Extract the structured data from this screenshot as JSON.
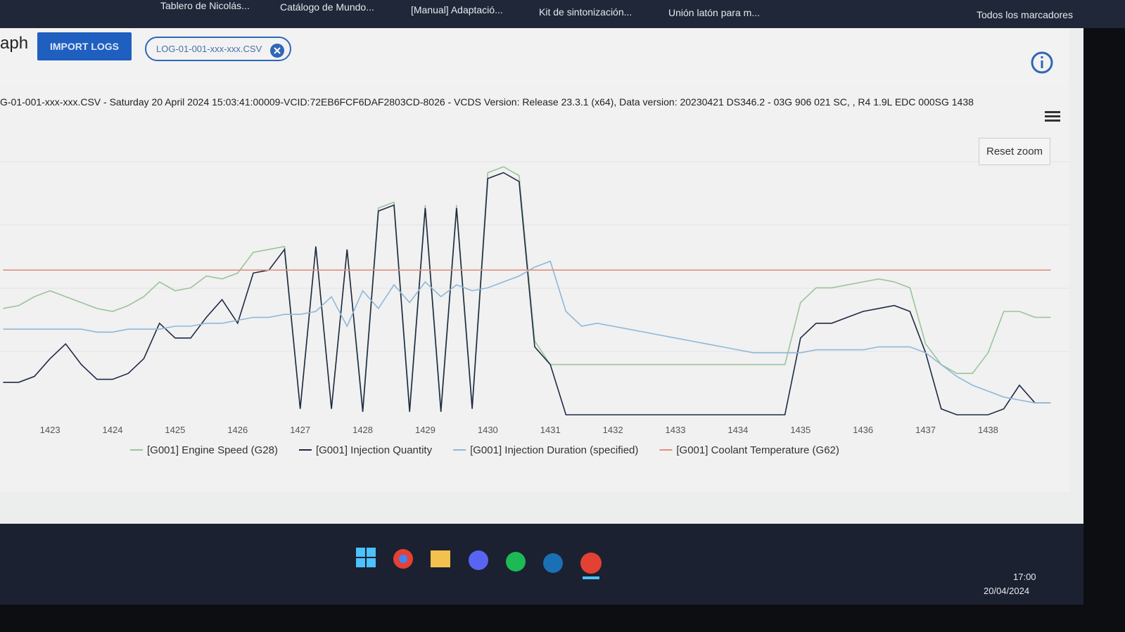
{
  "browser": {
    "bookmarks": [
      "Tablero de Nicolás...",
      "Catálogo de Mundo...",
      "[Manual] Adaptació...",
      "Kit de sintonización...",
      "Unión latón para m..."
    ],
    "all_bookmarks": "Todos los marcadores"
  },
  "app": {
    "title": "aph",
    "import_button": "IMPORT LOGS",
    "file_chip": "LOG-01-001-xxx-xxx.CSV"
  },
  "chart_data": {
    "type": "line",
    "title": "G-01-001-xxx-xxx.CSV - Saturday 20 April 2024 15:03:41:00009-VCID:72EB6FCF6DAF2803CD-8026 - VCDS Version: Release 23.3.1 (x64), Data version: 20230421 DS346.2 - 03G 906 021 SC, , R4 1.9L EDC 000SG 1438",
    "reset_zoom": "Reset zoom",
    "x": [
      1422.25,
      1422.5,
      1422.75,
      1423,
      1423.25,
      1423.5,
      1423.75,
      1424,
      1424.25,
      1424.5,
      1424.75,
      1425,
      1425.25,
      1425.5,
      1425.75,
      1426,
      1426.25,
      1426.5,
      1426.75,
      1427,
      1427.25,
      1427.5,
      1427.75,
      1428,
      1428.25,
      1428.5,
      1428.75,
      1429,
      1429.25,
      1429.5,
      1429.75,
      1430,
      1430.25,
      1430.5,
      1430.75,
      1431,
      1431.25,
      1431.5,
      1431.75,
      1432,
      1432.25,
      1432.5,
      1432.75,
      1433,
      1433.25,
      1433.5,
      1433.75,
      1434,
      1434.25,
      1434.5,
      1434.75,
      1435,
      1435.25,
      1435.5,
      1435.75,
      1436,
      1436.25,
      1436.5,
      1436.75,
      1437,
      1437.25,
      1437.5,
      1437.75,
      1438,
      1438.25,
      1438.5,
      1438.75,
      1439
    ],
    "series": [
      {
        "name": "[G001] Engine Speed (G28)",
        "color": "#9cc49a",
        "values": [
          36,
          37,
          40,
          42,
          40,
          38,
          36,
          35,
          37,
          40,
          45,
          42,
          43,
          47,
          46,
          48,
          55,
          56,
          57,
          2,
          57,
          2,
          56,
          2,
          70,
          72,
          2,
          71,
          2,
          71,
          3,
          82,
          84,
          81,
          25,
          17,
          17,
          17,
          17,
          17,
          17,
          17,
          17,
          17,
          17,
          17,
          17,
          17,
          17,
          17,
          17,
          38,
          43,
          43,
          44,
          45,
          46,
          45,
          43,
          24,
          17,
          14,
          14,
          21,
          35,
          35,
          33,
          33
        ]
      },
      {
        "name": "[G001] Injection Quantity",
        "color": "#1f2a44",
        "values": [
          11,
          11,
          13,
          19,
          24,
          17,
          12,
          12,
          14,
          19,
          31,
          26,
          26,
          33,
          39,
          31,
          48,
          49,
          56,
          2,
          57,
          2,
          56,
          1,
          69,
          71,
          1,
          70,
          1,
          70,
          2,
          80,
          82,
          79,
          23,
          17,
          0,
          0,
          0,
          0,
          0,
          0,
          0,
          0,
          0,
          0,
          0,
          0,
          0,
          0,
          0,
          26,
          31,
          31,
          33,
          35,
          36,
          37,
          35,
          21,
          2,
          0,
          0,
          0,
          2,
          10,
          4,
          4
        ]
      },
      {
        "name": "[G001] Injection Duration (specified)",
        "color": "#8fb8d8",
        "values": [
          29,
          29,
          29,
          29,
          29,
          29,
          28,
          28,
          29,
          29,
          29,
          30,
          30,
          31,
          31,
          32,
          33,
          33,
          34,
          34,
          35,
          40,
          30,
          42,
          36,
          44,
          38,
          45,
          40,
          44,
          42,
          43,
          45,
          47,
          50,
          52,
          35,
          30,
          31,
          30,
          29,
          28,
          27,
          26,
          25,
          24,
          23,
          22,
          21,
          21,
          21,
          21,
          22,
          22,
          22,
          22,
          23,
          23,
          23,
          21,
          17,
          13,
          10,
          8,
          6,
          5,
          4,
          4
        ]
      },
      {
        "name": "[G001] Coolant Temperature (G62)",
        "color": "#e0907e",
        "values": [
          49,
          49,
          49,
          49,
          49,
          49,
          49,
          49,
          49,
          49,
          49,
          49,
          49,
          49,
          49,
          49,
          49,
          49,
          49,
          49,
          49,
          49,
          49,
          49,
          49,
          49,
          49,
          49,
          49,
          49,
          49,
          49,
          49,
          49,
          49,
          49,
          49,
          49,
          49,
          49,
          49,
          49,
          49,
          49,
          49,
          49,
          49,
          49,
          49,
          49,
          49,
          49,
          49,
          49,
          49,
          49,
          49,
          49,
          49,
          49,
          49,
          49,
          49,
          49,
          49,
          49,
          49,
          49
        ]
      }
    ],
    "xlim": [
      1422.2,
      1439.3
    ],
    "xticks": [
      1423,
      1424,
      1425,
      1426,
      1427,
      1428,
      1429,
      1430,
      1431,
      1432,
      1433,
      1434,
      1435,
      1436,
      1437,
      1438
    ],
    "ylim": [
      0,
      100
    ]
  },
  "taskbar": {
    "time": "17:00",
    "date": "20/04/2024"
  }
}
